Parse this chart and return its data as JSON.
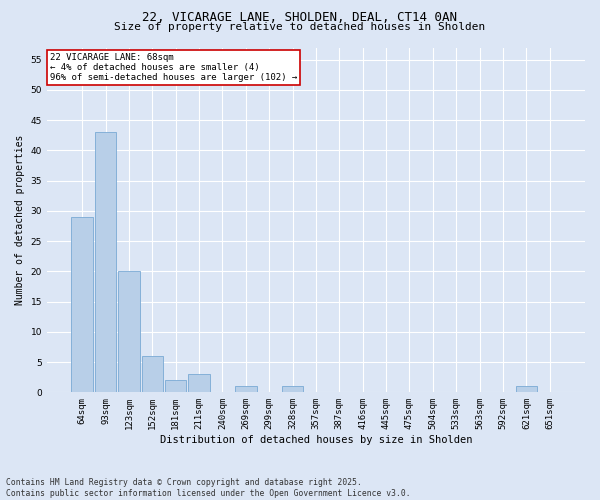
{
  "title": "22, VICARAGE LANE, SHOLDEN, DEAL, CT14 0AN",
  "subtitle": "Size of property relative to detached houses in Sholden",
  "xlabel": "Distribution of detached houses by size in Sholden",
  "ylabel": "Number of detached properties",
  "categories": [
    "64sqm",
    "93sqm",
    "123sqm",
    "152sqm",
    "181sqm",
    "211sqm",
    "240sqm",
    "269sqm",
    "299sqm",
    "328sqm",
    "357sqm",
    "387sqm",
    "416sqm",
    "445sqm",
    "475sqm",
    "504sqm",
    "533sqm",
    "563sqm",
    "592sqm",
    "621sqm",
    "651sqm"
  ],
  "values": [
    29,
    43,
    20,
    6,
    2,
    3,
    0,
    1,
    0,
    1,
    0,
    0,
    0,
    0,
    0,
    0,
    0,
    0,
    0,
    1,
    0
  ],
  "bar_color": "#b8cfe8",
  "bar_edge_color": "#7aaad4",
  "bg_color": "#dce6f5",
  "grid_color": "#ffffff",
  "annotation_box_color": "#ffffff",
  "annotation_border_color": "#cc0000",
  "annotation_text": "22 VICARAGE LANE: 68sqm\n← 4% of detached houses are smaller (4)\n96% of semi-detached houses are larger (102) →",
  "annotation_fontsize": 6.5,
  "ylim": [
    0,
    57
  ],
  "yticks": [
    0,
    5,
    10,
    15,
    20,
    25,
    30,
    35,
    40,
    45,
    50,
    55
  ],
  "footer": "Contains HM Land Registry data © Crown copyright and database right 2025.\nContains public sector information licensed under the Open Government Licence v3.0.",
  "title_fontsize": 9,
  "subtitle_fontsize": 8,
  "xlabel_fontsize": 7.5,
  "ylabel_fontsize": 7,
  "tick_fontsize": 6.5,
  "footer_fontsize": 5.8
}
